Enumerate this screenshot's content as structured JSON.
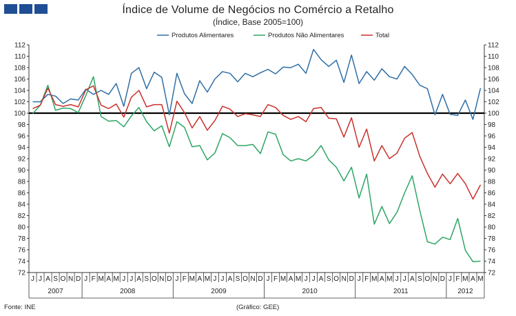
{
  "header": {
    "title": "Índice de Volume de Negócios no Comércio a Retalho",
    "subtitle": "(Índice, Base 2005=100)"
  },
  "footer": {
    "source": "Fonte: INE",
    "credit": "(Gráfico: GEE)"
  },
  "chart_data": {
    "type": "line",
    "title": "Índice de Volume de Negócios no Comércio a Retalho",
    "subtitle": "(Índice, Base 2005=100)",
    "ylim": [
      72,
      112
    ],
    "yticks": [
      72,
      74,
      76,
      78,
      80,
      82,
      84,
      86,
      88,
      90,
      92,
      94,
      96,
      98,
      100,
      102,
      104,
      106,
      108,
      110,
      112
    ],
    "grid": false,
    "legend_position": "top",
    "reference_line": 100,
    "x": [
      "J",
      "J",
      "A",
      "S",
      "O",
      "N",
      "D",
      "J",
      "F",
      "M",
      "A",
      "M",
      "J",
      "J",
      "A",
      "S",
      "O",
      "N",
      "D",
      "J",
      "F",
      "M",
      "A",
      "M",
      "J",
      "J",
      "A",
      "S",
      "O",
      "N",
      "D",
      "J",
      "F",
      "M",
      "A",
      "M",
      "J",
      "J",
      "A",
      "S",
      "O",
      "N",
      "D",
      "J",
      "F",
      "M",
      "A",
      "M",
      "J",
      "J",
      "A",
      "S",
      "O",
      "N",
      "D",
      "J",
      "F",
      "M",
      "A",
      "M"
    ],
    "years": [
      {
        "label": "2007",
        "start": 0,
        "end": 7
      },
      {
        "label": "2008",
        "start": 7,
        "end": 19
      },
      {
        "label": "2009",
        "start": 19,
        "end": 31
      },
      {
        "label": "2010",
        "start": 31,
        "end": 43
      },
      {
        "label": "2011",
        "start": 43,
        "end": 55
      },
      {
        "label": "2012",
        "start": 55,
        "end": 60
      }
    ],
    "series": [
      {
        "name": "Produtos Alimentares",
        "color": "#2e6ea6",
        "values": [
          102.0,
          102.0,
          103.3,
          103.0,
          101.7,
          102.5,
          102.3,
          104.2,
          103.3,
          104.0,
          103.3,
          105.2,
          101.2,
          107.0,
          108.0,
          104.3,
          107.2,
          106.3,
          99.7,
          107.0,
          103.4,
          101.7,
          105.7,
          103.7,
          106.0,
          107.3,
          107.0,
          105.5,
          107.0,
          106.4,
          107.1,
          107.7,
          106.9,
          108.1,
          108.0,
          108.6,
          107.0,
          111.2,
          109.4,
          108.2,
          109.3,
          105.4,
          110.2,
          105.2,
          107.3,
          105.8,
          107.8,
          106.4,
          106.0,
          108.2,
          106.8,
          104.9,
          104.3,
          99.7,
          103.3,
          99.8,
          99.6,
          102.3,
          98.9,
          104.4
        ]
      },
      {
        "name": "Produtos Não Alimentares",
        "color": "#2ca564",
        "values": [
          99.9,
          101.4,
          104.9,
          100.5,
          100.9,
          100.8,
          100.1,
          103.1,
          106.4,
          99.4,
          98.6,
          98.7,
          97.6,
          99.5,
          101.0,
          98.5,
          96.9,
          97.8,
          94.1,
          98.5,
          97.5,
          94.1,
          94.3,
          91.8,
          93.0,
          96.4,
          95.7,
          94.3,
          94.3,
          94.5,
          92.9,
          96.7,
          96.3,
          92.7,
          91.6,
          92.0,
          91.6,
          92.6,
          94.3,
          91.8,
          90.5,
          88.1,
          90.5,
          85.1,
          89.3,
          80.5,
          83.6,
          80.6,
          82.6,
          86.0,
          89.0,
          82.9,
          77.4,
          77.0,
          78.2,
          77.8,
          81.5,
          75.9,
          73.9,
          74.0
        ]
      },
      {
        "name": "Total",
        "color": "#c8302b",
        "values": [
          100.8,
          101.4,
          104.4,
          101.5,
          101.2,
          101.5,
          101.1,
          104.1,
          104.8,
          101.4,
          100.8,
          101.6,
          99.3,
          102.8,
          104.0,
          101.1,
          101.5,
          101.5,
          96.5,
          102.1,
          100.1,
          97.4,
          99.4,
          97.0,
          98.7,
          101.2,
          100.7,
          99.4,
          99.9,
          99.7,
          99.4,
          101.5,
          101.0,
          99.6,
          98.9,
          99.4,
          98.5,
          100.8,
          101.0,
          99.1,
          99.0,
          95.8,
          99.2,
          94.0,
          97.2,
          91.6,
          94.3,
          92.0,
          93.0,
          95.6,
          96.6,
          92.4,
          89.4,
          87.0,
          89.3,
          87.6,
          89.4,
          87.6,
          84.9,
          87.4
        ]
      }
    ]
  }
}
